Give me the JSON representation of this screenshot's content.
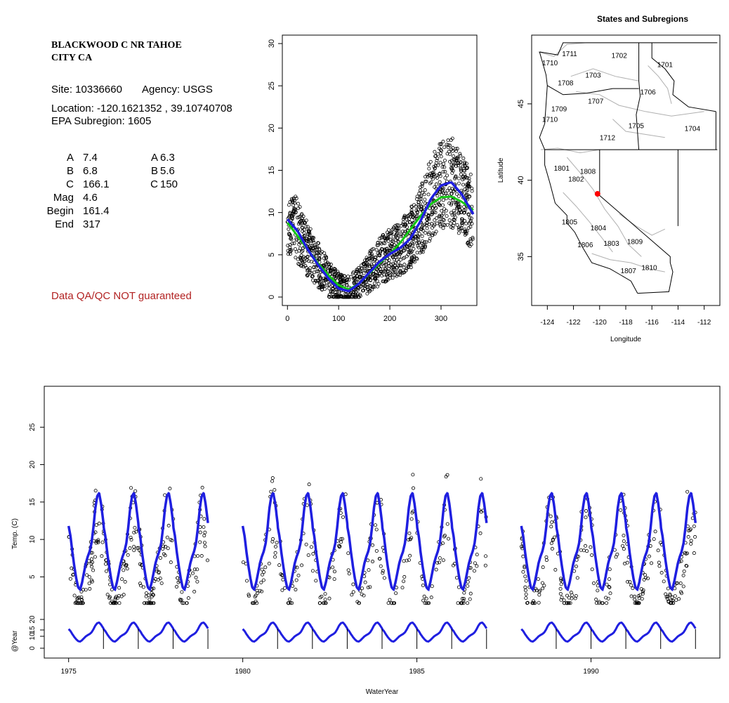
{
  "site": {
    "name_line1": "BLACKWOOD C NR TAHOE",
    "name_line2": "CITY CA",
    "site_line": "Site: 10336660",
    "agency_line": "Agency: USGS",
    "location_line": "Location: -120.1621352 , 39.10740708",
    "subregion_line": "EPA Subregion: 1605",
    "qa_note": "Data QA/QC NOT guaranteed"
  },
  "params": {
    "left": [
      {
        "label": "A",
        "value": "7.4"
      },
      {
        "label": "B",
        "value": "6.8"
      },
      {
        "label": "C",
        "value": "166.1"
      },
      {
        "label": "Mag",
        "value": "4.6"
      },
      {
        "label": "Begin",
        "value": "161.4"
      },
      {
        "label": "End",
        "value": "317"
      }
    ],
    "right": [
      {
        "label": "A",
        "value": "6.3"
      },
      {
        "label": "B",
        "value": "5.6"
      },
      {
        "label": "C",
        "value": "150"
      }
    ]
  },
  "colors": {
    "blue": "#1f1fe0",
    "green": "#14c814",
    "red": "#ff0000",
    "grey": "#b0b0b0"
  },
  "chart_data": [
    {
      "type": "scatter",
      "title": "",
      "xlabel": "",
      "ylabel": "",
      "xlim": [
        -10,
        370
      ],
      "ylim": [
        -1,
        31
      ],
      "x_ticks": [
        "0",
        "100",
        "200",
        "300"
      ],
      "y_ticks": [
        "0",
        "5",
        "10",
        "15",
        "20",
        "25",
        "30"
      ],
      "fit_blue": {
        "x": [
          0,
          20,
          40,
          60,
          80,
          100,
          120,
          140,
          160,
          180,
          200,
          220,
          240,
          260,
          280,
          300,
          320,
          340,
          365
        ],
        "y": [
          9.2,
          7.8,
          5.6,
          3.8,
          2.2,
          1.0,
          0.7,
          1.6,
          2.9,
          4.2,
          5.1,
          5.8,
          6.9,
          9.0,
          11.6,
          13.2,
          13.6,
          12.2,
          9.6
        ]
      },
      "fit_green": {
        "x": [
          0,
          20,
          40,
          60,
          80,
          100,
          120,
          140,
          160,
          180,
          200,
          220,
          240,
          260,
          280,
          300,
          320,
          340,
          365
        ],
        "y": [
          8.8,
          7.2,
          5.6,
          4.0,
          2.6,
          1.4,
          0.9,
          1.6,
          2.8,
          4.0,
          5.1,
          6.4,
          8.0,
          9.6,
          11.0,
          11.8,
          11.9,
          11.3,
          10.2
        ]
      }
    },
    {
      "type": "map",
      "title": "States and Subregions",
      "xlabel": "Longitude",
      "ylabel": "Latitude",
      "xlim": [
        -125.2,
        -110.8
      ],
      "ylim": [
        31.8,
        49.5
      ],
      "x_ticks": [
        "-124",
        "-122",
        "-120",
        "-118",
        "-116",
        "-114",
        "-112"
      ],
      "y_ticks": [
        "35",
        "40",
        "45"
      ],
      "region_labels": [
        {
          "label": "1702",
          "lon": -118.5,
          "lat": 48.2
        },
        {
          "label": "1701",
          "lon": -115.0,
          "lat": 47.6
        },
        {
          "label": "1711",
          "lon": -122.3,
          "lat": 48.3
        },
        {
          "label": "1710",
          "lon": -123.8,
          "lat": 47.7
        },
        {
          "label": "1703",
          "lon": -120.5,
          "lat": 46.9
        },
        {
          "label": "1708",
          "lon": -122.6,
          "lat": 46.4
        },
        {
          "label": "1706",
          "lon": -116.3,
          "lat": 45.8
        },
        {
          "label": "1707",
          "lon": -120.3,
          "lat": 45.2
        },
        {
          "label": "1709",
          "lon": -123.1,
          "lat": 44.7
        },
        {
          "label": "1710",
          "lon": -123.8,
          "lat": 44.0
        },
        {
          "label": "1705",
          "lon": -117.2,
          "lat": 43.6
        },
        {
          "label": "1704",
          "lon": -112.9,
          "lat": 43.4
        },
        {
          "label": "1712",
          "lon": -119.4,
          "lat": 42.8
        },
        {
          "label": "1801",
          "lon": -122.9,
          "lat": 40.8
        },
        {
          "label": "1808",
          "lon": -120.9,
          "lat": 40.6
        },
        {
          "label": "1802",
          "lon": -121.8,
          "lat": 40.1
        },
        {
          "label": "1805",
          "lon": -122.3,
          "lat": 37.3
        },
        {
          "label": "1804",
          "lon": -120.1,
          "lat": 36.9
        },
        {
          "label": "1806",
          "lon": -121.1,
          "lat": 35.8
        },
        {
          "label": "1803",
          "lon": -119.1,
          "lat": 35.9
        },
        {
          "label": "1809",
          "lon": -117.3,
          "lat": 36.0
        },
        {
          "label": "1807",
          "lon": -117.8,
          "lat": 34.1
        },
        {
          "label": "1810",
          "lon": -116.2,
          "lat": 34.3
        }
      ],
      "site_point": {
        "lon": -120.16,
        "lat": 39.11
      }
    },
    {
      "type": "line",
      "title": "",
      "xlabel": "WaterYear",
      "ylabel": "Temp. (C)",
      "ylabel_lower": "@Year",
      "xlim": [
        1974.3,
        1993.7
      ],
      "ylim": [
        -0.5,
        30
      ],
      "x_ticks": [
        "1975",
        "1980",
        "1985",
        "1990"
      ],
      "y_ticks": [
        "5",
        "10",
        "15",
        "20",
        "25"
      ],
      "y_ticks_lower": [
        "0",
        "10",
        "15",
        "20"
      ],
      "segments": [
        [
          1975.0,
          1979.0
        ],
        [
          1980.0,
          1987.0
        ],
        [
          1988.0,
          1993.0
        ]
      ],
      "peak_years": [
        1976,
        1977,
        1978,
        1979,
        1981,
        1982,
        1983,
        1984,
        1985,
        1986,
        1987,
        1989,
        1990,
        1991,
        1992,
        1993
      ]
    }
  ]
}
